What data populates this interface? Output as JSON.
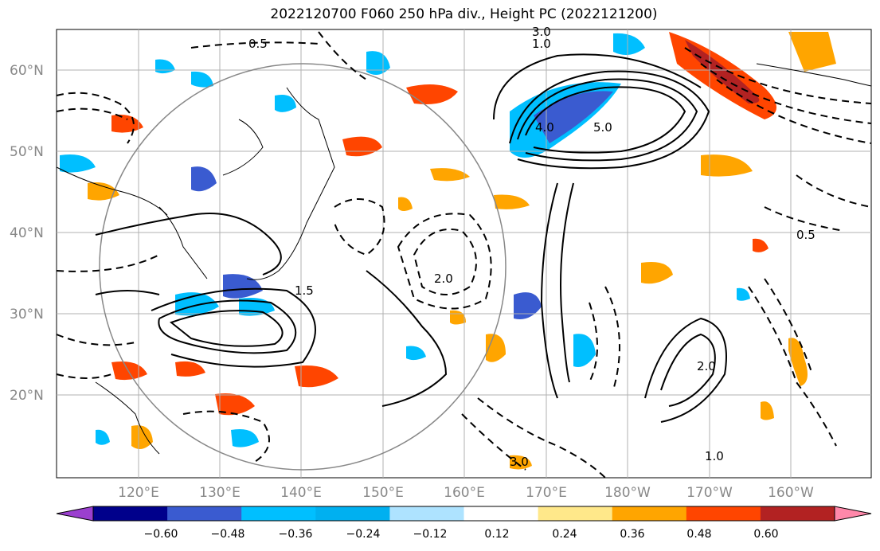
{
  "title": "2022120700 F060 250 hPa div., Height PC (2022121200)",
  "map": {
    "lon_ticks": [
      "120°E",
      "130°E",
      "140°E",
      "150°E",
      "160°E",
      "170°E",
      "180°W",
      "170°W",
      "160°W"
    ],
    "lat_ticks": [
      "60°N",
      "50°N",
      "40°N",
      "30°N",
      "20°N"
    ],
    "contour_labels": [
      "0.5",
      "1.0",
      "1.5",
      "2.0",
      "3.0",
      "5.0",
      "4.0",
      "0.5",
      "1.0",
      "2.0",
      "3.0"
    ]
  },
  "colorbar": {
    "levels": [
      "−0.60",
      "−0.48",
      "−0.36",
      "−0.24",
      "−0.12",
      "0.12",
      "0.24",
      "0.36",
      "0.48",
      "0.60"
    ],
    "colors": [
      "#9b3fcf",
      "#00008b",
      "#3a5bd0",
      "#00bfff",
      "#00b0f0",
      "#aee3ff",
      "#ffffff",
      "#ffe88a",
      "#ffa500",
      "#ff4500",
      "#b22222",
      "#ff88aa"
    ]
  }
}
